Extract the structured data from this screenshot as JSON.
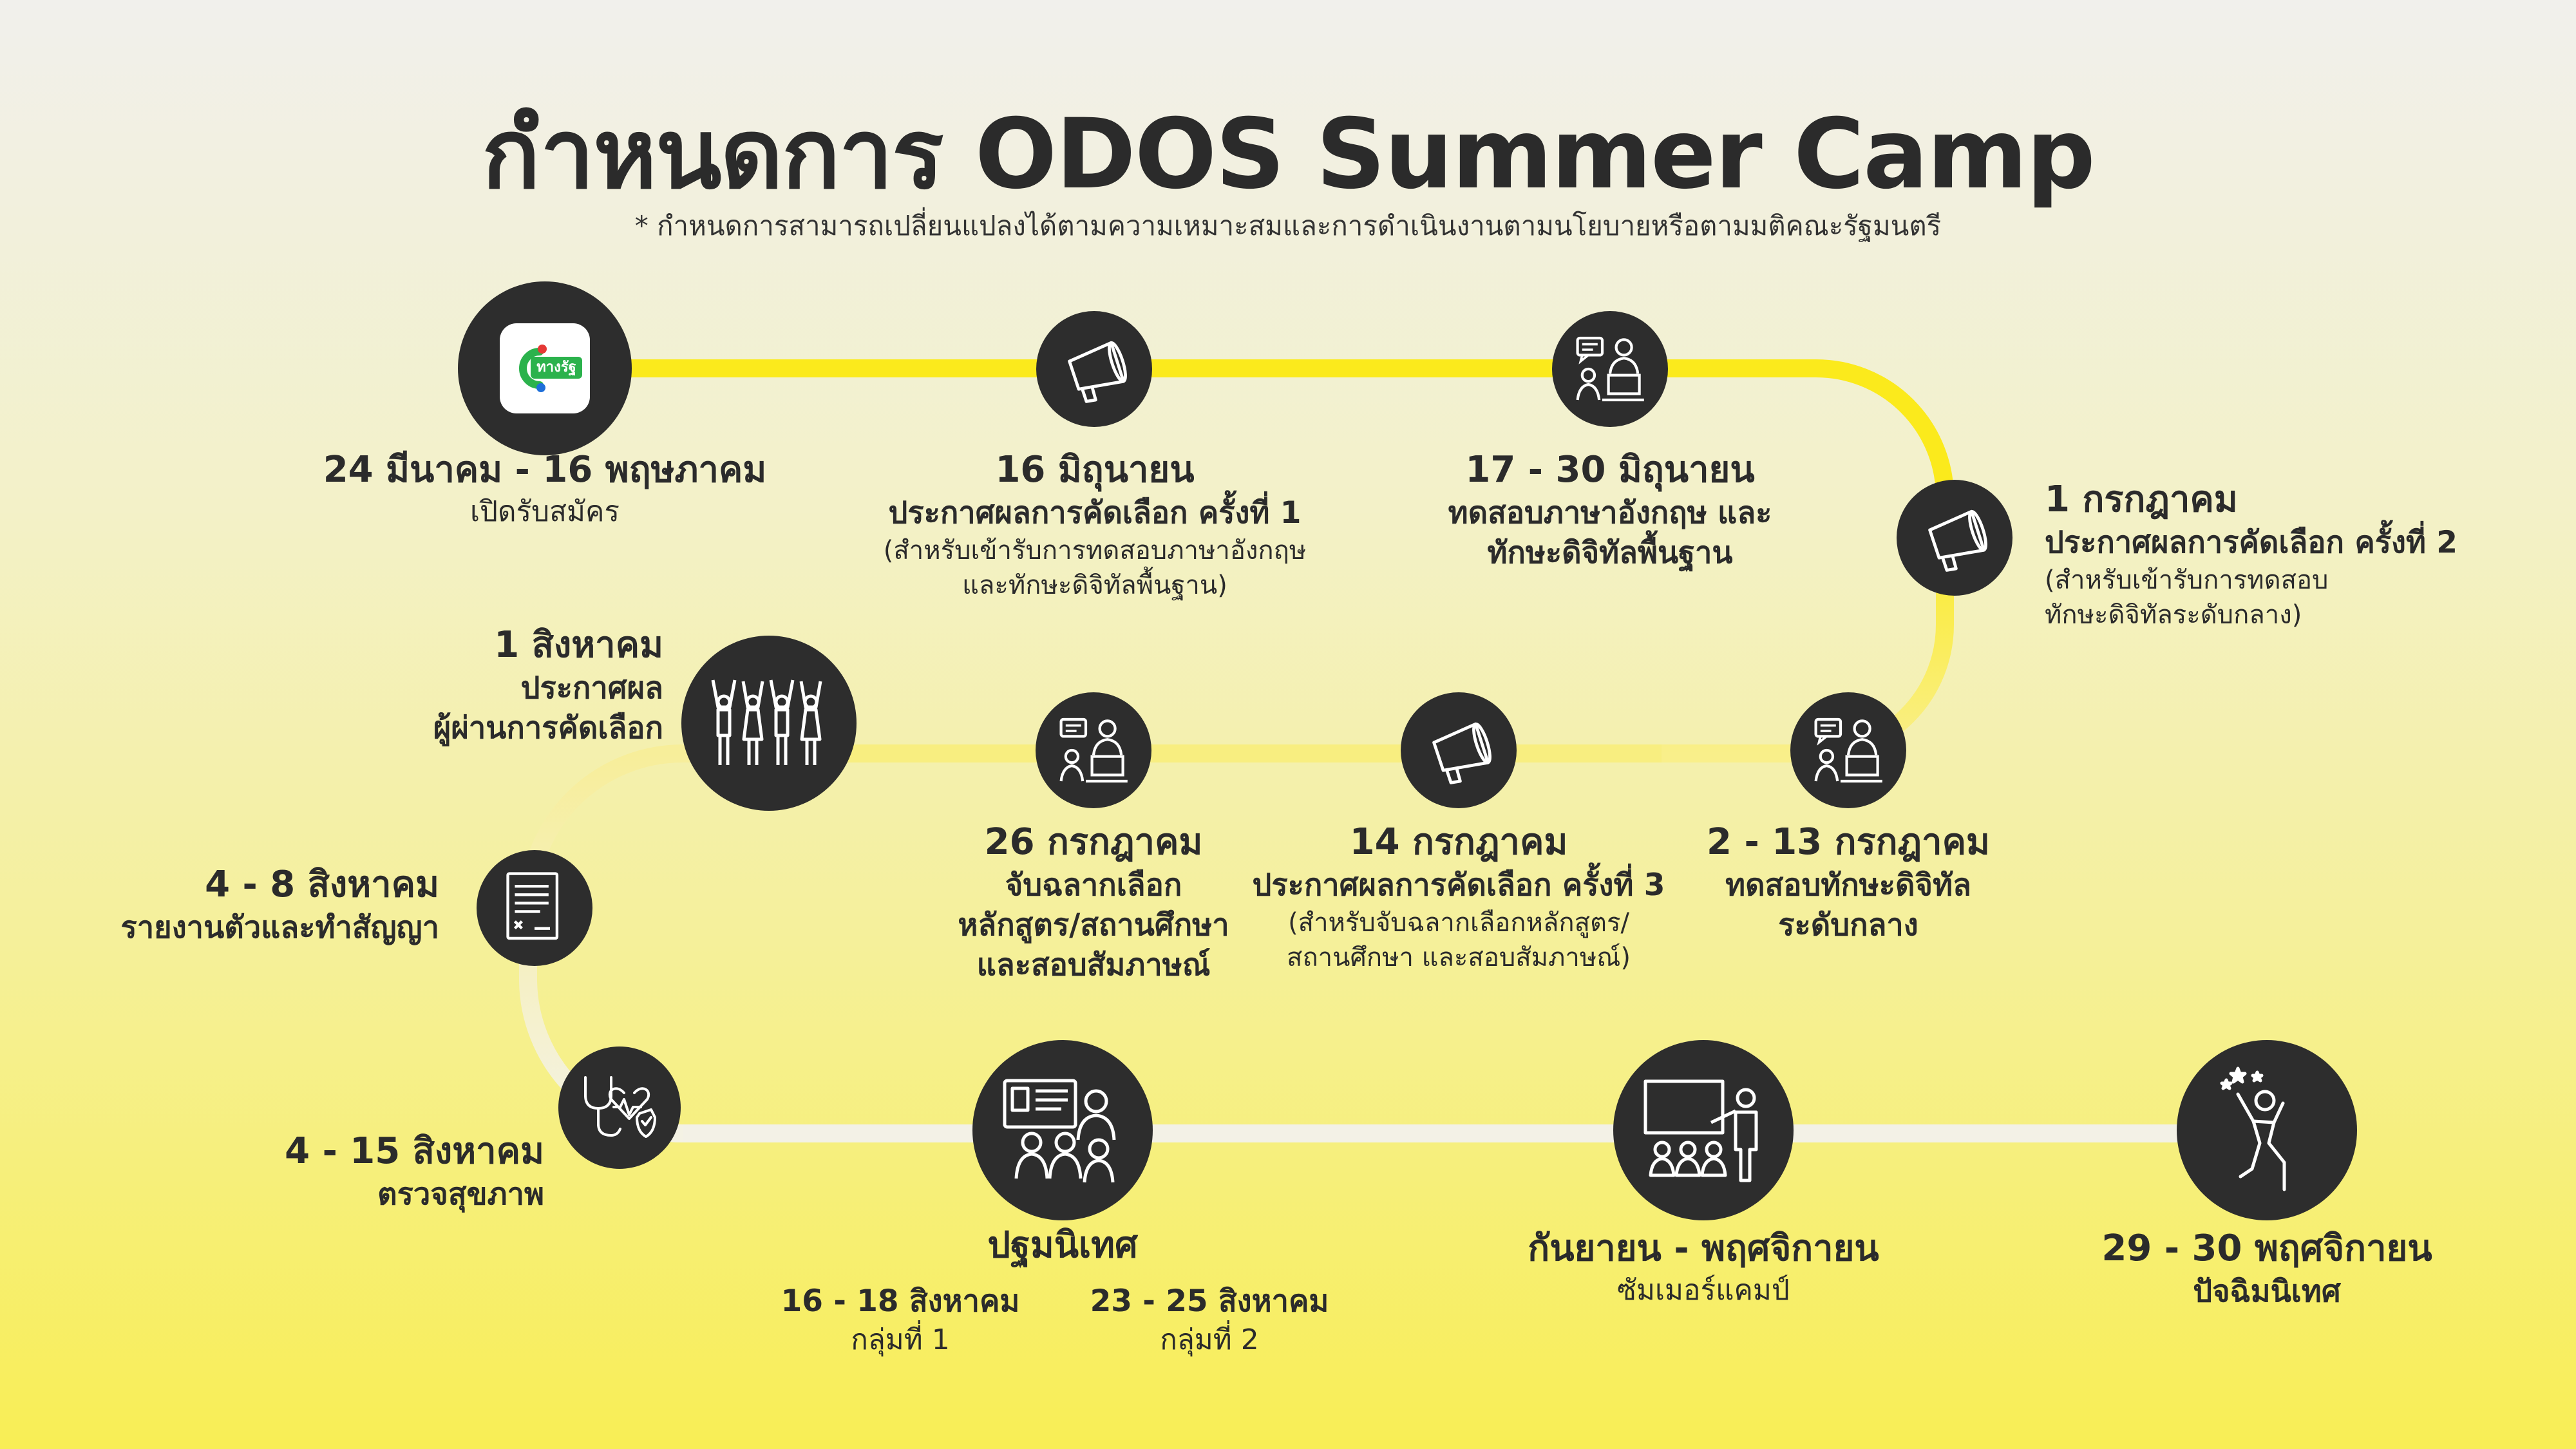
{
  "title": "กำหนดการ ODOS Summer Camp",
  "subtitle": "* กำหนดการสามารถเปลี่ยนแปลงได้ตามความเหมาะสมและการดำเนินงานตามนโยบายหรือตามมติคณะรัฐมนตรี",
  "colors": {
    "path_yellow": "#fbea1c",
    "path_light": "#f7f4e0",
    "node_dark": "#2d2d2d"
  },
  "app_logo_text": "ทางรัฐ",
  "events": [
    {
      "date": "24 มีนาคม - 16 พฤษภาคม",
      "title": "เปิดรับสมัคร",
      "icon": "thangrat-app-icon"
    },
    {
      "date": "16 มิถุนายน",
      "title": "ประกาศผลการคัดเลือก ครั้งที่ 1",
      "note": [
        "(สำหรับเข้ารับการทดสอบภาษาอังกฤษ",
        "และทักษะดิจิทัลพื้นฐาน)"
      ],
      "icon": "megaphone-icon"
    },
    {
      "date": "17 - 30 มิถุนายน",
      "title": [
        "ทดสอบภาษาอังกฤษ และ",
        "ทักษะดิจิทัลพื้นฐาน"
      ],
      "icon": "exam-computer-icon"
    },
    {
      "date": "1 กรกฎาคม",
      "title": "ประกาศผลการคัดเลือก ครั้งที่ 2",
      "note": [
        "(สำหรับเข้ารับการทดสอบ",
        "ทักษะดิจิทัลระดับกลาง)"
      ],
      "icon": "megaphone-icon"
    },
    {
      "date": "2 - 13 กรกฎาคม",
      "title": [
        "ทดสอบทักษะดิจิทัล",
        "ระดับกลาง"
      ],
      "icon": "exam-computer-icon"
    },
    {
      "date": "14 กรกฎาคม",
      "title": "ประกาศผลการคัดเลือก ครั้งที่ 3",
      "note": [
        "(สำหรับจับฉลากเลือกหลักสูตร/",
        "สถานศึกษา และสอบสัมภาษณ์)"
      ],
      "icon": "megaphone-icon"
    },
    {
      "date": "26 กรกฎาคม",
      "title": [
        "จับฉลากเลือก",
        "หลักสูตร/สถานศึกษา",
        "และสอบสัมภาษณ์"
      ],
      "icon": "interview-icon"
    },
    {
      "date": "1 สิงหาคม",
      "title": [
        "ประกาศผล",
        "ผู้ผ่านการคัดเลือก"
      ],
      "icon": "cheering-people-icon"
    },
    {
      "date": "4 - 8 สิงหาคม",
      "title": "รายงานตัวและทำสัญญา",
      "icon": "contract-document-icon"
    },
    {
      "date": "4 - 15 สิงหาคม",
      "title": "ตรวจสุขภาพ",
      "icon": "health-check-icon"
    },
    {
      "title": "ปฐมนิเทศ",
      "groups": [
        {
          "date": "16 - 18 สิงหาคม",
          "label": "กลุ่มที่ 1"
        },
        {
          "date": "23 - 25 สิงหาคม",
          "label": "กลุ่มที่ 2"
        }
      ],
      "icon": "orientation-class-icon"
    },
    {
      "date": "กันยายน - พฤศจิกายน",
      "title": "ซัมเมอร์แคมป์",
      "icon": "teacher-classroom-icon"
    },
    {
      "date": "29 - 30 พฤศจิกายน",
      "title": "ปัจฉิมนิเทศ",
      "icon": "celebrating-person-icon"
    }
  ]
}
